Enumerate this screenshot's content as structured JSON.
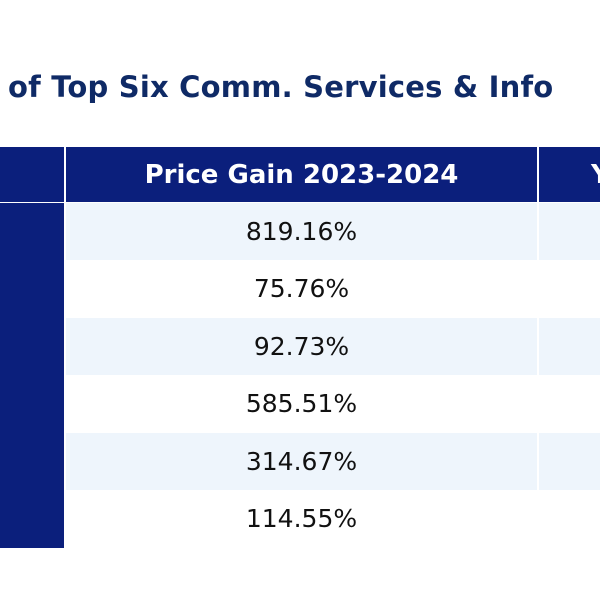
{
  "title": "of Top Six Comm. Services & Info",
  "table": {
    "header": [
      "Price Gain 2023-2024",
      "Y"
    ],
    "rows": [
      "819.16%",
      "75.76%",
      "92.73%",
      "585.51%",
      "314.67%",
      "114.55%"
    ]
  }
}
